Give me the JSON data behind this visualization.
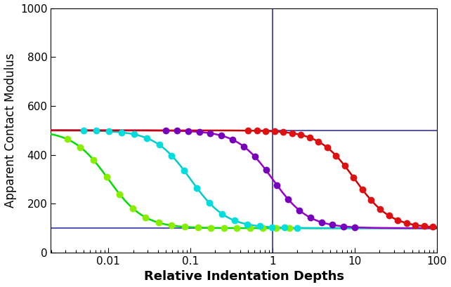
{
  "title": "",
  "xlabel": "Relative Indentation Depths",
  "ylabel": "Apparent Contact Modulus",
  "xlim_log": [
    -2.7,
    2
  ],
  "ylim": [
    0,
    1000
  ],
  "yticks": [
    0,
    200,
    400,
    600,
    800,
    1000
  ],
  "hline1": 500,
  "hline2": 100,
  "vline1": 1.0,
  "E_film": 500,
  "E_substrate": 100,
  "colors_line": [
    "#00dd00",
    "#00cccc",
    "#9900cc",
    "#cc0000"
  ],
  "colors_dot": [
    "#88ee00",
    "#00dddd",
    "#7700bb",
    "#dd1111"
  ],
  "hline_color": "#3333aa",
  "vline_color": "#3333aa",
  "background_color": "#ffffff",
  "xlabel_fontsize": 13,
  "ylabel_fontsize": 12,
  "tick_fontsize": 11,
  "curve_params": [
    {
      "b": 0.01,
      "x_dot_min": -2.5,
      "x_dot_max": 0.2,
      "n_dots": 18
    },
    {
      "b": 0.1,
      "x_dot_min": -2.3,
      "x_dot_max": 0.3,
      "n_dots": 18
    },
    {
      "b": 1.0,
      "x_dot_min": -1.3,
      "x_dot_max": 1.0,
      "n_dots": 18
    },
    {
      "b": 10.0,
      "x_dot_min": -0.3,
      "x_dot_max": 1.95,
      "n_dots": 22
    }
  ]
}
